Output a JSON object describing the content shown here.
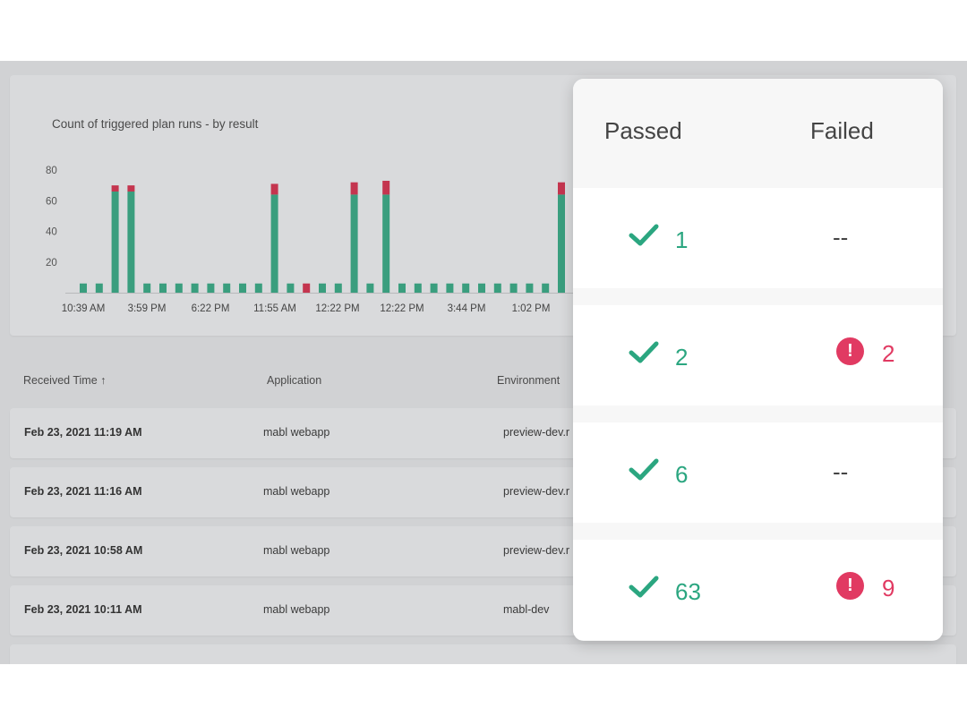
{
  "chart": {
    "title": "Count of triggered plan runs - by result",
    "colors": {
      "passed": "#3a9e7e",
      "failed": "#c4354f"
    },
    "chart_data": {
      "type": "bar",
      "stacked": true,
      "title": "Count of triggered plan runs - by result",
      "ylim": [
        0,
        80
      ],
      "yticks": [
        20,
        40,
        60,
        80
      ],
      "xtick_labels": [
        "10:39 AM",
        "3:59 PM",
        "6:22 PM",
        "11:55 AM",
        "12:22 PM",
        "12:22 PM",
        "3:44 PM",
        "1:02 PM"
      ],
      "series": [
        {
          "values": [
            6,
            6,
            66,
            66,
            6,
            6,
            6,
            6,
            6,
            6,
            6,
            6,
            64,
            6,
            0,
            6,
            6,
            64,
            6,
            64,
            6,
            6,
            6,
            6,
            6,
            6,
            6,
            6,
            6,
            6,
            64
          ]
        },
        {
          "values": [
            0,
            0,
            4,
            4,
            0,
            0,
            0,
            0,
            0,
            0,
            0,
            0,
            7,
            0,
            6,
            0,
            0,
            8,
            0,
            9,
            0,
            0,
            0,
            0,
            0,
            0,
            0,
            0,
            0,
            0,
            8
          ]
        }
      ]
    }
  },
  "table": {
    "headers": {
      "received_time": "Received Time ↑",
      "application": "Application",
      "environment": "Environment"
    },
    "rows": [
      {
        "time": "Feb 23, 2021 11:19 AM",
        "app": "mabl webapp",
        "env": "preview-dev.r"
      },
      {
        "time": "Feb 23, 2021 11:16 AM",
        "app": "mabl webapp",
        "env": "preview-dev.r"
      },
      {
        "time": "Feb 23, 2021 10:58 AM",
        "app": "mabl webapp",
        "env": "preview-dev.r"
      },
      {
        "time": "Feb 23, 2021 10:11 AM",
        "app": "mabl webapp",
        "env": "mabl-dev"
      }
    ]
  },
  "panel": {
    "passed_label": "Passed",
    "failed_label": "Failed",
    "rows": [
      {
        "passed": "1",
        "failed": "--"
      },
      {
        "passed": "2",
        "failed": "2"
      },
      {
        "passed": "6",
        "failed": "--"
      },
      {
        "passed": "63",
        "failed": "9"
      }
    ],
    "icons": {
      "passed": "check-icon",
      "failed": "exclamation-icon"
    },
    "fail_symbol": "!"
  }
}
